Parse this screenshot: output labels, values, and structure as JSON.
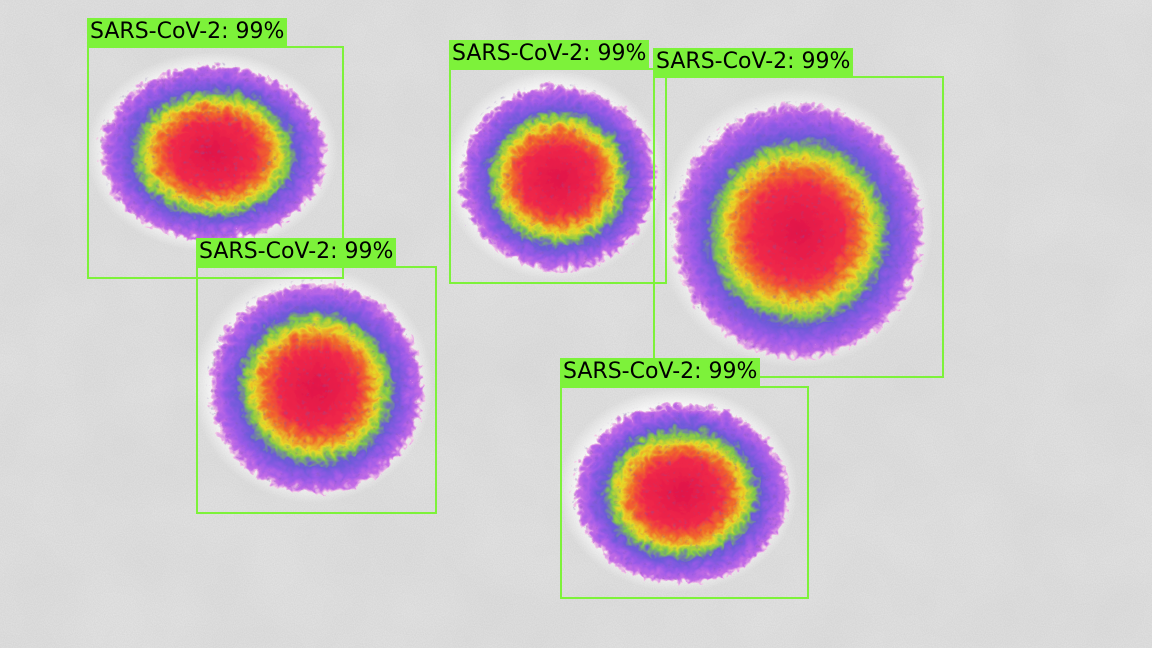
{
  "colors": {
    "box": "#7df23a",
    "label_background": "#7df23a",
    "label_text": "#000000",
    "background": "#e6e6e6"
  },
  "detections": [
    {
      "label": "SARS-CoV-2: 99%",
      "class": "SARS-CoV-2",
      "confidence": 0.99
    },
    {
      "label": "SARS-CoV-2: 99%",
      "class": "SARS-CoV-2",
      "confidence": 0.99
    },
    {
      "label": "SARS-CoV-2: 99%",
      "class": "SARS-CoV-2",
      "confidence": 0.99
    },
    {
      "label": "SARS-CoV-2: 99%",
      "class": "SARS-CoV-2",
      "confidence": 0.99
    },
    {
      "label": "SARS-CoV-2: 99%",
      "class": "SARS-CoV-2",
      "confidence": 0.99
    }
  ]
}
